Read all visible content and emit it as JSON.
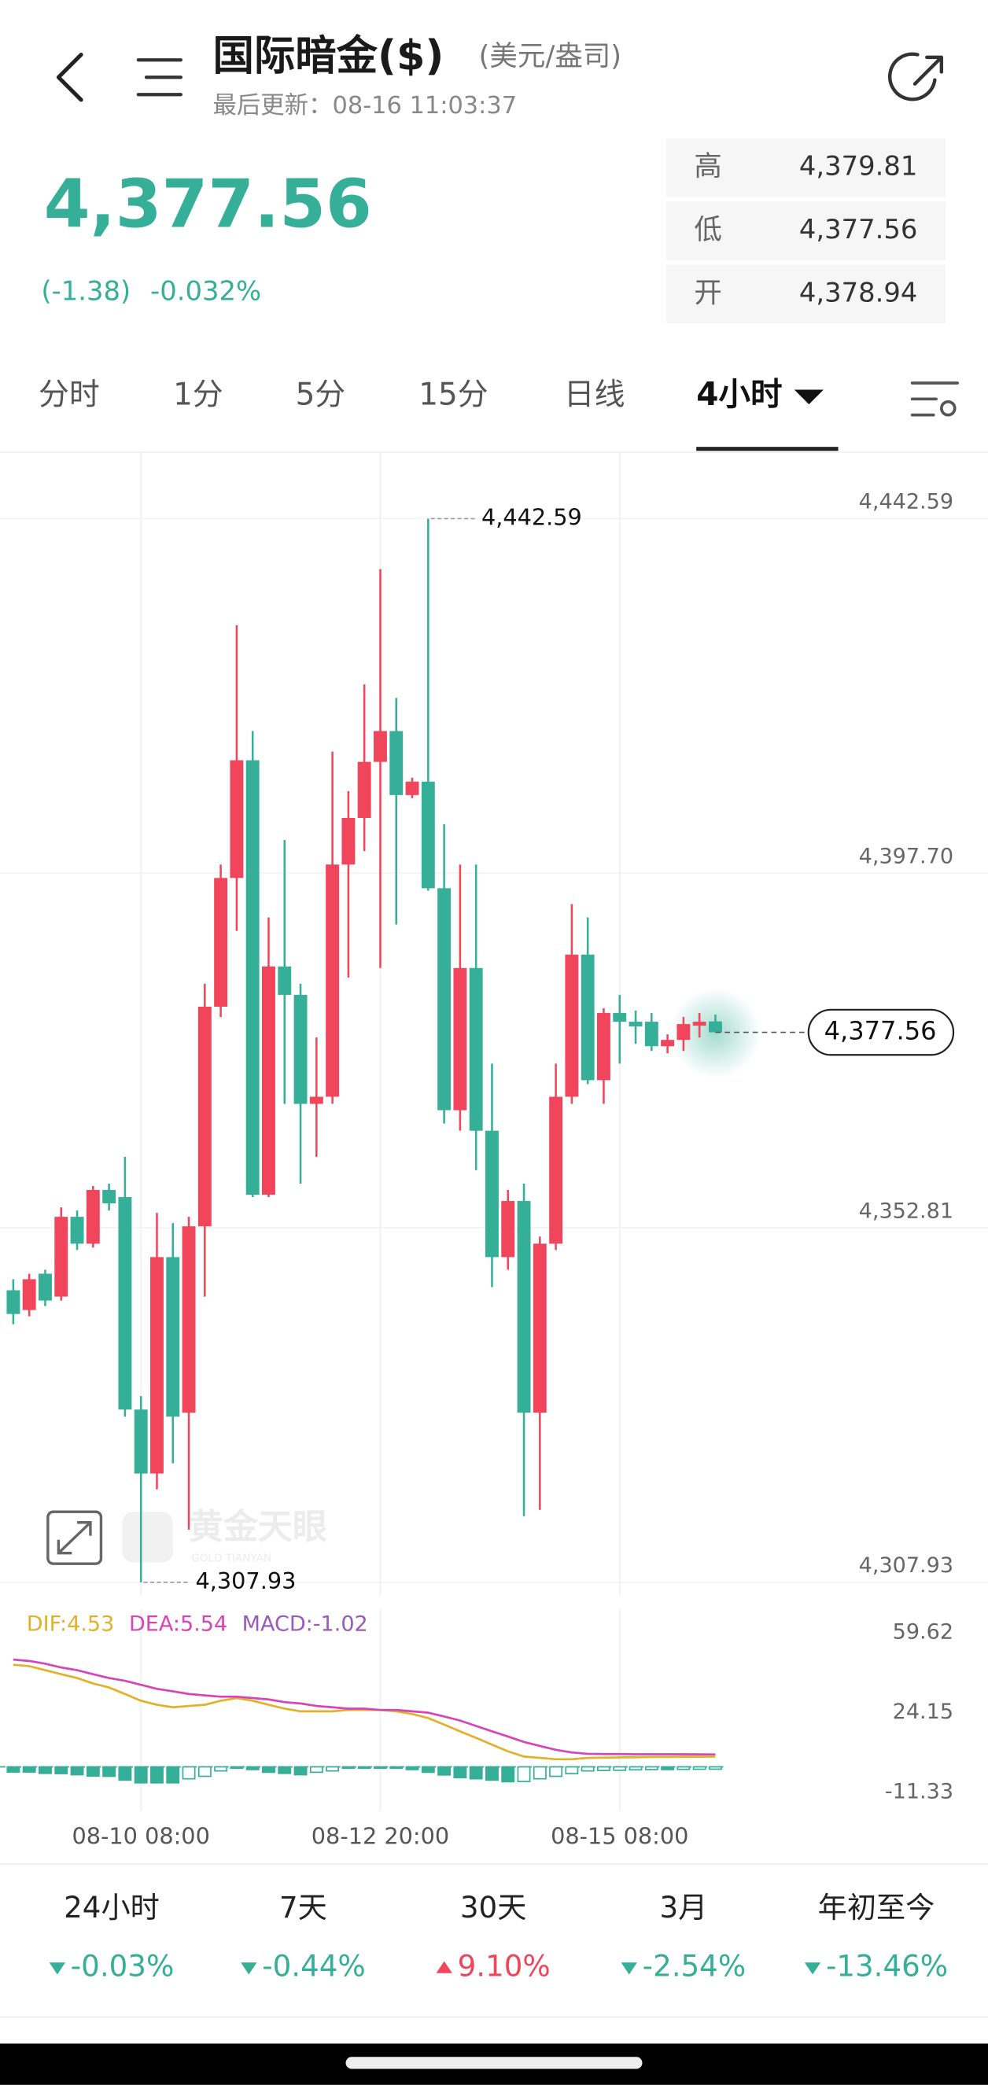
{
  "header": {
    "title": "国际暗金($)",
    "unit": "(美元/盎司)",
    "updated": "最后更新：08-16 11:03:37"
  },
  "quote": {
    "price": "4,377.56",
    "change": "(-1.38)",
    "change_percent": "-0.032%"
  },
  "stats": [
    {
      "label": "高",
      "value": "4,379.81"
    },
    {
      "label": "低",
      "value": "4,377.56"
    },
    {
      "label": "开",
      "value": "4,378.94"
    }
  ],
  "tabs": [
    "分时",
    "1分",
    "5分",
    "15分",
    "日线",
    "4小时"
  ],
  "active_tab": 5,
  "watermark": {
    "name": "黄金天眼",
    "subtitle": "GOLD TIANYAN"
  },
  "chart_data": [
    {
      "type": "candlestick",
      "categories": [
        null,
        null,
        null,
        null,
        null,
        null,
        null,
        null,
        "08-10 08:00",
        null,
        null,
        null,
        null,
        null,
        null,
        null,
        null,
        null,
        null,
        null,
        null,
        null,
        null,
        "08-12 20:00",
        null,
        null,
        null,
        null,
        null,
        null,
        null,
        null,
        null,
        null,
        null,
        null,
        null,
        null,
        "08-15 08:00",
        null,
        null,
        null,
        null,
        null,
        null
      ],
      "open": [
        4344.9,
        4342.4,
        4347.0,
        4344.1,
        4354.2,
        4350.8,
        4357.6,
        4356.7,
        4329.8,
        4321.7,
        4349.1,
        4329.4,
        4353.0,
        4380.8,
        4397.1,
        4412.0,
        4357.0,
        4385.9,
        4382.3,
        4368.5,
        4369.4,
        4398.8,
        4404.7,
        4411.8,
        4415.7,
        4407.6,
        4409.3,
        4395.8,
        4367.7,
        4385.7,
        4365.1,
        4349.1,
        4356.2,
        4329.4,
        4350.8,
        4369.4,
        4387.4,
        4371.5,
        4380.0,
        4378.9,
        4378.9,
        4375.8,
        4376.6,
        4378.4,
        4378.94
      ],
      "high": [
        4346.3,
        4347.0,
        4347.5,
        4355.4,
        4355.0,
        4358.1,
        4358.4,
        4361.8,
        4331.5,
        4354.7,
        4353.4,
        4354.2,
        4383.7,
        4398.8,
        4429.1,
        4415.7,
        4392.1,
        4401.9,
        4383.7,
        4376.9,
        4413.1,
        4408.1,
        4421.6,
        4436.2,
        4419.9,
        4409.8,
        4442.59,
        4403.9,
        4398.8,
        4398.8,
        4373.6,
        4357.6,
        4358.4,
        4351.7,
        4373.6,
        4393.8,
        4392.1,
        4380.6,
        4382.3,
        4380.3,
        4380.0,
        4377.3,
        4379.5,
        4380.0,
        4379.81
      ],
      "low": [
        4340.6,
        4341.6,
        4342.9,
        4343.6,
        4350.0,
        4350.3,
        4355.0,
        4328.9,
        4307.93,
        4319.7,
        4323.0,
        4314.6,
        4344.1,
        4379.5,
        4390.4,
        4356.7,
        4356.7,
        4368.5,
        4358.4,
        4361.8,
        4368.5,
        4384.5,
        4400.5,
        4385.7,
        4391.2,
        4407.2,
        4395.5,
        4366.0,
        4365.1,
        4360.1,
        4345.3,
        4347.5,
        4316.3,
        4317.1,
        4350.0,
        4368.5,
        4371.0,
        4368.5,
        4373.6,
        4376.1,
        4375.2,
        4374.9,
        4375.2,
        4376.9,
        4377.56
      ],
      "close": [
        4341.9,
        4346.3,
        4343.6,
        4354.2,
        4350.8,
        4357.6,
        4355.9,
        4329.8,
        4321.7,
        4349.1,
        4328.9,
        4353.0,
        4380.8,
        4397.1,
        4412.0,
        4357.0,
        4385.9,
        4382.3,
        4368.5,
        4369.4,
        4398.8,
        4404.7,
        4411.8,
        4415.7,
        4407.6,
        4409.3,
        4395.8,
        4367.7,
        4385.7,
        4365.1,
        4349.1,
        4356.2,
        4329.4,
        4350.8,
        4369.4,
        4387.4,
        4371.5,
        4380.0,
        4378.9,
        4378.3,
        4375.8,
        4376.6,
        4378.6,
        4378.9,
        4377.56
      ],
      "up_color": "#f0455b",
      "down_color": "#35af97",
      "ylim": [
        4307.93,
        4442.59
      ],
      "yticks": [
        {
          "value": 4442.59,
          "label": "4,442.59"
        },
        {
          "value": 4397.7,
          "label": "4,397.70"
        },
        {
          "value": 4352.81,
          "label": "4,352.81"
        },
        {
          "value": 4307.93,
          "label": "4,307.93"
        }
      ],
      "grid": true,
      "high_label": "4,442.59",
      "low_label": "4,307.93",
      "last_label": "4,377.56"
    },
    {
      "type": "macd",
      "series": [
        {
          "name": "DIF:4.53",
          "type": "line",
          "color": "#e2b12a",
          "values": [
            45.4,
            44.8,
            43.0,
            41.2,
            39.5,
            37.1,
            35.3,
            32.4,
            29.4,
            27.6,
            26.5,
            27.1,
            27.6,
            29.4,
            30.6,
            29.4,
            27.6,
            25.9,
            24.7,
            24.7,
            24.7,
            25.3,
            25.3,
            25.3,
            24.7,
            23.5,
            21.7,
            18.8,
            15.8,
            12.9,
            9.9,
            6.9,
            4.6,
            4.0,
            3.4,
            3.4,
            4.0,
            4.1,
            4.2,
            4.3,
            4.4,
            4.4,
            4.5,
            4.5,
            4.53
          ]
        },
        {
          "name": "DEA:5.54",
          "type": "line",
          "color": "#d645b8",
          "values": [
            47.7,
            47.1,
            45.9,
            44.2,
            43.0,
            41.2,
            39.5,
            38.3,
            36.5,
            34.7,
            33.6,
            32.4,
            31.8,
            31.2,
            31.2,
            30.6,
            30.0,
            28.8,
            28.2,
            27.1,
            26.5,
            25.9,
            25.9,
            25.3,
            25.3,
            24.7,
            24.1,
            22.4,
            20.6,
            18.2,
            15.8,
            13.5,
            11.1,
            9.3,
            7.6,
            6.4,
            5.8,
            5.7,
            5.7,
            5.6,
            5.6,
            5.6,
            5.6,
            5.55,
            5.54
          ]
        },
        {
          "name": "MACD:-1.02",
          "type": "bar",
          "color": "#35af97",
          "legend_color": "#9a5bb8",
          "values": [
            -2.3,
            -2.3,
            -2.9,
            -3.0,
            -3.5,
            -4.1,
            -4.2,
            -5.9,
            -7.1,
            -7.1,
            -7.1,
            -5.3,
            -4.2,
            -1.8,
            -0.6,
            -1.2,
            -2.4,
            -2.9,
            -3.5,
            -2.4,
            -1.8,
            -0.6,
            -0.6,
            0.0,
            -0.6,
            -1.2,
            -2.4,
            -3.6,
            -4.8,
            -5.3,
            -5.9,
            -6.6,
            -6.5,
            -5.3,
            -4.2,
            -3.0,
            -1.8,
            -1.6,
            -1.5,
            -1.3,
            -1.2,
            -1.2,
            -1.1,
            -1.05,
            -1.02
          ]
        }
      ],
      "ylim": [
        -11.33,
        59.62
      ],
      "yticks": [
        59.62,
        24.15,
        -11.33
      ]
    }
  ],
  "periods": [
    {
      "label": "24小时",
      "value": "-0.03%",
      "direction": "down"
    },
    {
      "label": "7天",
      "value": "-0.44%",
      "direction": "down"
    },
    {
      "label": "30天",
      "value": "9.10%",
      "direction": "up"
    },
    {
      "label": "3月",
      "value": "-2.54%",
      "direction": "down"
    },
    {
      "label": "年初至今",
      "value": "-13.46%",
      "direction": "down"
    }
  ]
}
